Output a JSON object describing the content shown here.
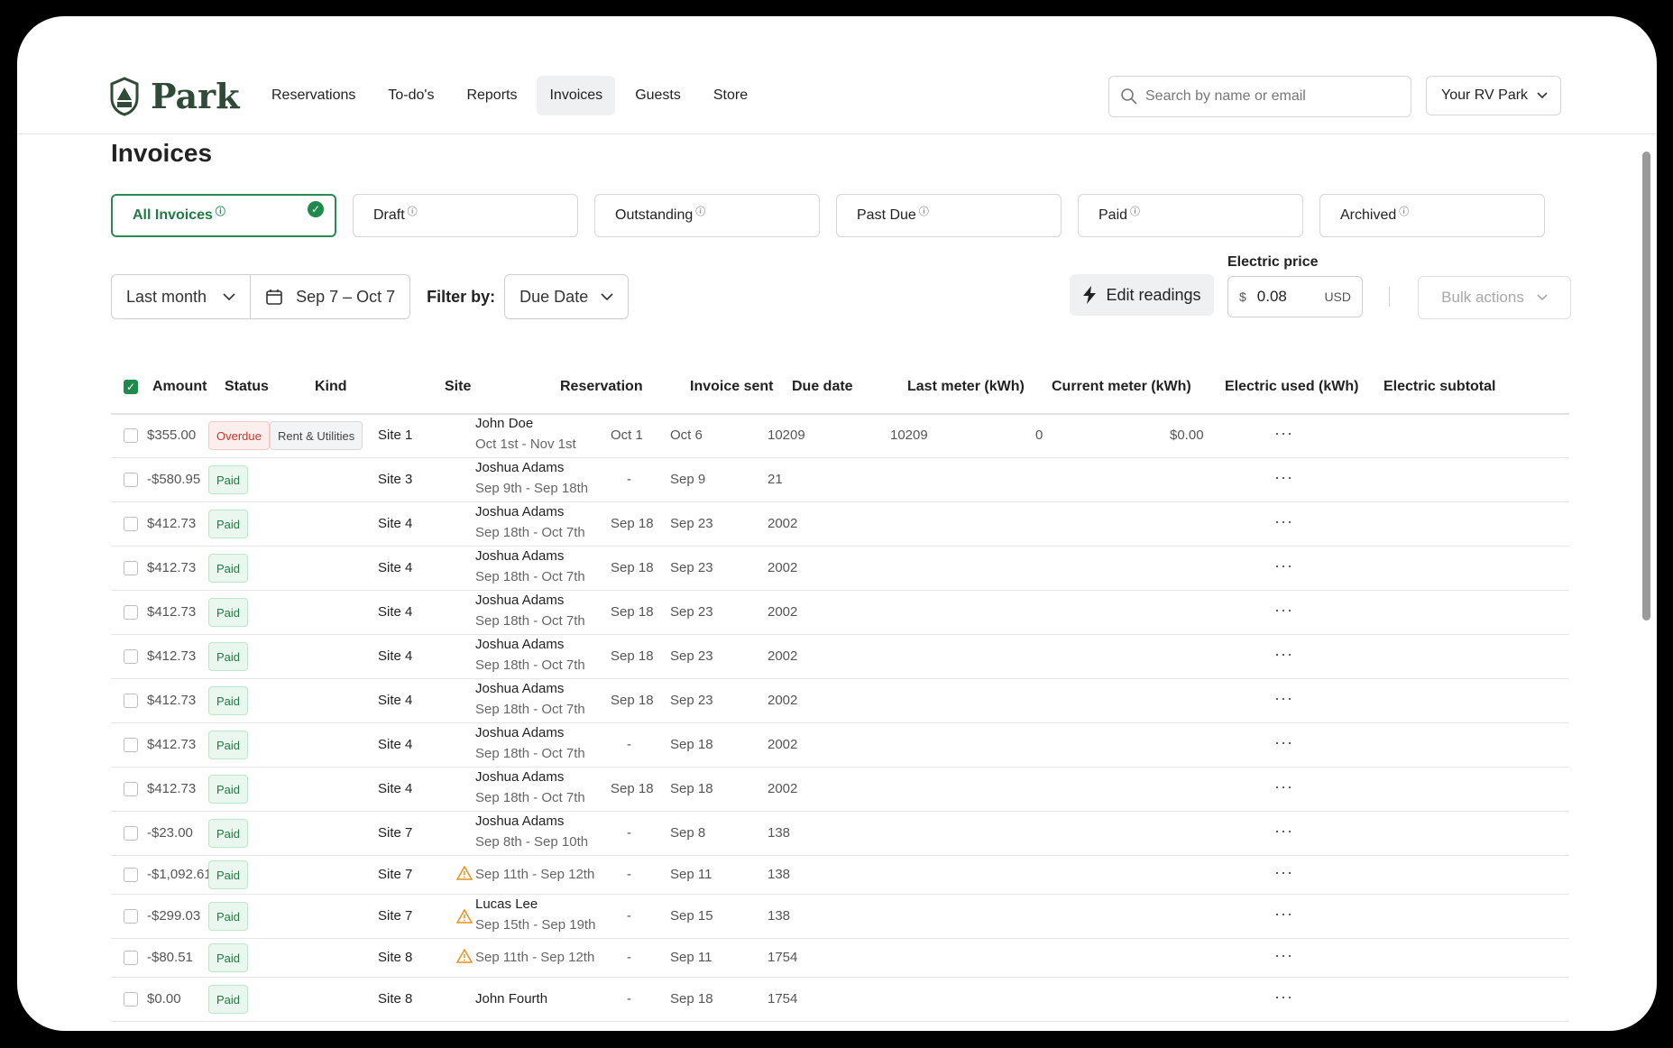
{
  "brand": {
    "name": "Park"
  },
  "nav": [
    {
      "label": "Reservations",
      "active": false
    },
    {
      "label": "To-do's",
      "active": false
    },
    {
      "label": "Reports",
      "active": false
    },
    {
      "label": "Invoices",
      "active": true
    },
    {
      "label": "Guests",
      "active": false
    },
    {
      "label": "Store",
      "active": false
    }
  ],
  "search": {
    "placeholder": "Search by name or email"
  },
  "park_selector": {
    "label": "Your RV Park"
  },
  "page": {
    "title": "Invoices"
  },
  "tabs": [
    {
      "label": "All Invoices",
      "active": true
    },
    {
      "label": "Draft",
      "active": false
    },
    {
      "label": "Outstanding",
      "active": false
    },
    {
      "label": "Past Due",
      "active": false
    },
    {
      "label": "Paid",
      "active": false
    },
    {
      "label": "Archived",
      "active": false
    }
  ],
  "filters": {
    "period": "Last month",
    "date_range": "Sep 7 – Oct 7",
    "filter_by_label": "Filter by:",
    "filter_by_value": "Due Date"
  },
  "actions": {
    "edit_readings": "Edit readings",
    "electric_price_label": "Electric price",
    "electric_price_currency": "$",
    "electric_price_value": "0.08",
    "electric_price_unit": "USD",
    "bulk_actions": "Bulk actions"
  },
  "table": {
    "headers": [
      "Amount",
      "Status",
      "Kind",
      "Site",
      "Reservation",
      "Invoice sent",
      "Due date",
      "Last meter (kWh)",
      "Current meter (kWh)",
      "Electric used (kWh)",
      "Electric subtotal"
    ],
    "rows": [
      {
        "amount": "$355.00",
        "status": "Overdue",
        "kind": "Rent & Utilities",
        "site": "Site 1",
        "name": "John Doe",
        "dates": "Oct 1st - Nov 1st",
        "warn": false,
        "sent": "Oct 1",
        "due": "Oct 6",
        "last": "10209",
        "current": "10209",
        "used": "0",
        "subtotal": "$0.00"
      },
      {
        "amount": "-$580.95",
        "status": "Paid",
        "kind": "",
        "site": "Site 3",
        "name": "Joshua Adams",
        "dates": "Sep 9th - Sep 18th",
        "warn": false,
        "sent": "-",
        "due": "Sep 9",
        "last": "21",
        "current": "",
        "used": "",
        "subtotal": ""
      },
      {
        "amount": "$412.73",
        "status": "Paid",
        "kind": "",
        "site": "Site 4",
        "name": "Joshua Adams",
        "dates": "Sep 18th - Oct 7th",
        "warn": false,
        "sent": "Sep 18",
        "due": "Sep 23",
        "last": "2002",
        "current": "",
        "used": "",
        "subtotal": ""
      },
      {
        "amount": "$412.73",
        "status": "Paid",
        "kind": "",
        "site": "Site 4",
        "name": "Joshua Adams",
        "dates": "Sep 18th - Oct 7th",
        "warn": false,
        "sent": "Sep 18",
        "due": "Sep 23",
        "last": "2002",
        "current": "",
        "used": "",
        "subtotal": ""
      },
      {
        "amount": "$412.73",
        "status": "Paid",
        "kind": "",
        "site": "Site 4",
        "name": "Joshua Adams",
        "dates": "Sep 18th - Oct 7th",
        "warn": false,
        "sent": "Sep 18",
        "due": "Sep 23",
        "last": "2002",
        "current": "",
        "used": "",
        "subtotal": ""
      },
      {
        "amount": "$412.73",
        "status": "Paid",
        "kind": "",
        "site": "Site 4",
        "name": "Joshua Adams",
        "dates": "Sep 18th - Oct 7th",
        "warn": false,
        "sent": "Sep 18",
        "due": "Sep 23",
        "last": "2002",
        "current": "",
        "used": "",
        "subtotal": ""
      },
      {
        "amount": "$412.73",
        "status": "Paid",
        "kind": "",
        "site": "Site 4",
        "name": "Joshua Adams",
        "dates": "Sep 18th - Oct 7th",
        "warn": false,
        "sent": "Sep 18",
        "due": "Sep 23",
        "last": "2002",
        "current": "",
        "used": "",
        "subtotal": ""
      },
      {
        "amount": "$412.73",
        "status": "Paid",
        "kind": "",
        "site": "Site 4",
        "name": "Joshua Adams",
        "dates": "Sep 18th - Oct 7th",
        "warn": false,
        "sent": "-",
        "due": "Sep 18",
        "last": "2002",
        "current": "",
        "used": "",
        "subtotal": ""
      },
      {
        "amount": "$412.73",
        "status": "Paid",
        "kind": "",
        "site": "Site 4",
        "name": "Joshua Adams",
        "dates": "Sep 18th - Oct 7th",
        "warn": false,
        "sent": "Sep 18",
        "due": "Sep 18",
        "last": "2002",
        "current": "",
        "used": "",
        "subtotal": ""
      },
      {
        "amount": "-$23.00",
        "status": "Paid",
        "kind": "",
        "site": "Site 7",
        "name": "Joshua Adams",
        "dates": "Sep 8th - Sep 10th",
        "warn": false,
        "sent": "-",
        "due": "Sep 8",
        "last": "138",
        "current": "",
        "used": "",
        "subtotal": ""
      },
      {
        "amount": "-$1,092.61",
        "status": "Paid",
        "kind": "",
        "site": "Site 7",
        "name": "",
        "dates": "Sep 11th - Sep 12th",
        "warn": true,
        "sent": "-",
        "due": "Sep 11",
        "last": "138",
        "current": "",
        "used": "",
        "subtotal": ""
      },
      {
        "amount": "-$299.03",
        "status": "Paid",
        "kind": "",
        "site": "Site 7",
        "name": "Lucas Lee",
        "dates": "Sep 15th - Sep 19th",
        "warn": true,
        "sent": "-",
        "due": "Sep 15",
        "last": "138",
        "current": "",
        "used": "",
        "subtotal": ""
      },
      {
        "amount": "-$80.51",
        "status": "Paid",
        "kind": "",
        "site": "Site 8",
        "name": "",
        "dates": "Sep 11th - Sep 12th",
        "warn": true,
        "sent": "-",
        "due": "Sep 11",
        "last": "1754",
        "current": "",
        "used": "",
        "subtotal": ""
      },
      {
        "amount": "$0.00",
        "status": "Paid",
        "kind": "",
        "site": "Site 8",
        "name": "John Fourth",
        "dates": "",
        "warn": false,
        "sent": "-",
        "due": "Sep 18",
        "last": "1754",
        "current": "",
        "used": "",
        "subtotal": ""
      }
    ]
  },
  "colors": {
    "brand": "#2f4a36",
    "accent": "#1f8a4c",
    "overdue": "#c0392b"
  }
}
